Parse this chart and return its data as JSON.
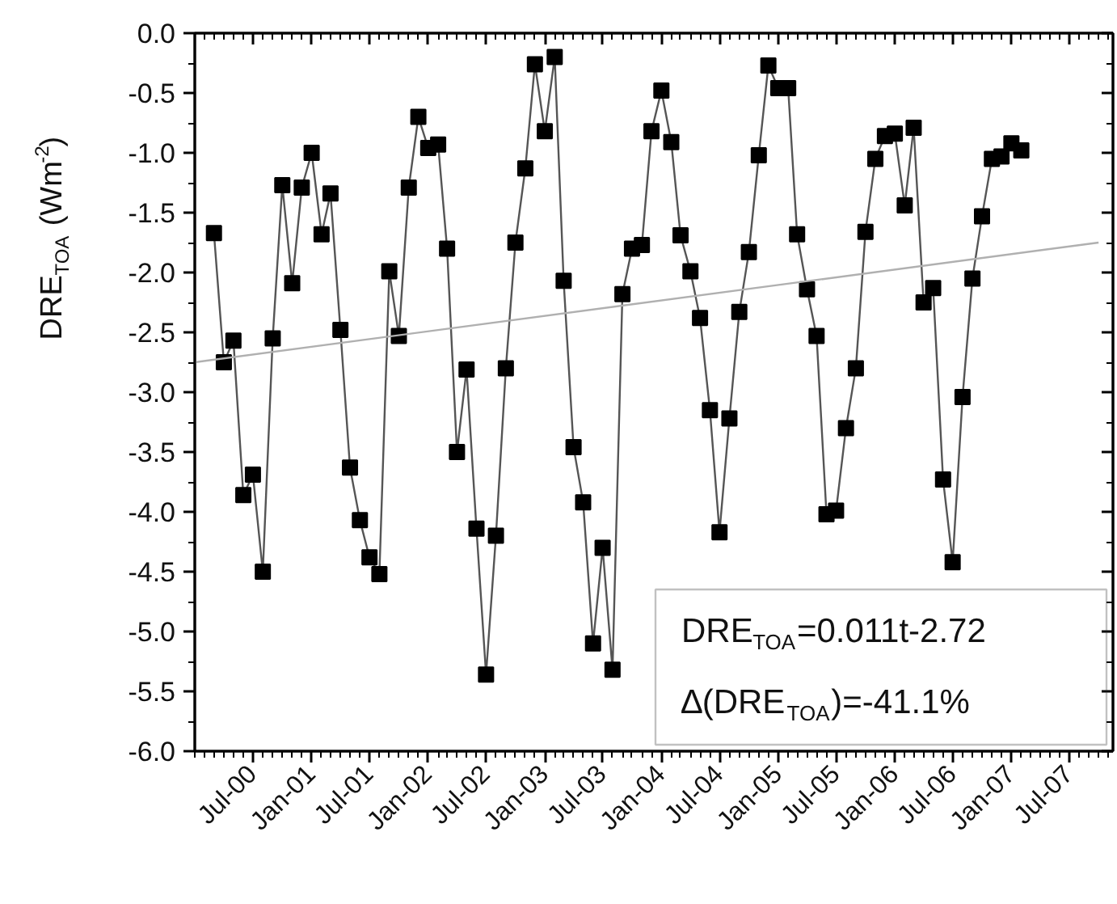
{
  "chart_data": {
    "type": "line",
    "ylabel": "DRE$_{TOA}$ (Wm$^{-2}$)",
    "xlim": [
      "2000-01-01",
      "2007-11-15"
    ],
    "xticks": [
      {
        "value": "2000-07",
        "label": "Jul-00"
      },
      {
        "value": "2001-01",
        "label": "Jan-01"
      },
      {
        "value": "2001-07",
        "label": "Jul-01"
      },
      {
        "value": "2002-01",
        "label": "Jan-02"
      },
      {
        "value": "2002-07",
        "label": "Jul-02"
      },
      {
        "value": "2003-01",
        "label": "Jan-03"
      },
      {
        "value": "2003-07",
        "label": "Jul-03"
      },
      {
        "value": "2004-01",
        "label": "Jan-04"
      },
      {
        "value": "2004-07",
        "label": "Jul-04"
      },
      {
        "value": "2005-01",
        "label": "Jan-05"
      },
      {
        "value": "2005-07",
        "label": "Jul-05"
      },
      {
        "value": "2006-01",
        "label": "Jan-06"
      },
      {
        "value": "2006-07",
        "label": "Jul-06"
      },
      {
        "value": "2007-01",
        "label": "Jan-07"
      },
      {
        "value": "2007-07",
        "label": "Jul-07"
      }
    ],
    "ylim": [
      -6.0,
      0.0
    ],
    "yticks": [
      {
        "value": 0,
        "label": "0.0"
      },
      {
        "value": -0.5,
        "label": "-0.5"
      },
      {
        "value": -1,
        "label": "-1.0"
      },
      {
        "value": -1.5,
        "label": "-1.5"
      },
      {
        "value": -2,
        "label": "-2.0"
      },
      {
        "value": -2.5,
        "label": "-2.5"
      },
      {
        "value": -3,
        "label": "-3.0"
      },
      {
        "value": -3.5,
        "label": "-3.5"
      },
      {
        "value": -4,
        "label": "-4.0"
      },
      {
        "value": -4.5,
        "label": "-4.5"
      },
      {
        "value": -5,
        "label": "-5.0"
      },
      {
        "value": -5.5,
        "label": "-5.5"
      },
      {
        "value": -6,
        "label": "-6.0"
      }
    ],
    "x": [
      "2000-03",
      "2000-04",
      "2000-05",
      "2000-06",
      "2000-07",
      "2000-08",
      "2000-09",
      "2000-10",
      "2000-11",
      "2000-12",
      "2001-01",
      "2001-02",
      "2001-03",
      "2001-04",
      "2001-05",
      "2001-06",
      "2001-07",
      "2001-08",
      "2001-09",
      "2001-10",
      "2001-11",
      "2001-12",
      "2002-01",
      "2002-02",
      "2002-03",
      "2002-04",
      "2002-05",
      "2002-06",
      "2002-07",
      "2002-08",
      "2002-09",
      "2002-10",
      "2002-11",
      "2002-12",
      "2003-01",
      "2003-02",
      "2003-03",
      "2003-04",
      "2003-05",
      "2003-06",
      "2003-07",
      "2003-08",
      "2003-09",
      "2003-10",
      "2003-11",
      "2003-12",
      "2004-01",
      "2004-02",
      "2004-03",
      "2004-04",
      "2004-05",
      "2004-06",
      "2004-07",
      "2004-08",
      "2004-09",
      "2004-10",
      "2004-11",
      "2004-12",
      "2005-01",
      "2005-02",
      "2005-03",
      "2005-04",
      "2005-05",
      "2005-06",
      "2005-07",
      "2005-08",
      "2005-09",
      "2005-10",
      "2005-11",
      "2005-12",
      "2006-01",
      "2006-02",
      "2006-03",
      "2006-04",
      "2006-05",
      "2006-06",
      "2006-07",
      "2006-08",
      "2006-09",
      "2006-10",
      "2006-11",
      "2006-12",
      "2007-01",
      "2007-02"
    ],
    "series": [
      {
        "color": "#000000",
        "marker": "square",
        "values": [
          -1.67,
          -2.75,
          -2.57,
          -3.86,
          -3.69,
          -4.5,
          -2.55,
          -1.27,
          -2.09,
          -1.29,
          -1.0,
          -1.68,
          -1.34,
          -2.48,
          -3.63,
          -4.07,
          -4.38,
          -4.52,
          -1.99,
          -2.53,
          -1.29,
          -0.7,
          -0.96,
          -0.93,
          -1.8,
          -3.5,
          -2.81,
          -4.14,
          -5.36,
          -4.2,
          -2.8,
          -1.75,
          -1.13,
          -0.26,
          -0.82,
          -0.2,
          -2.07,
          -3.46,
          -3.92,
          -5.1,
          -4.3,
          -5.32,
          -2.18,
          -1.8,
          -1.77,
          -0.82,
          -0.48,
          -0.91,
          -1.69,
          -1.99,
          -2.38,
          -3.15,
          -4.17,
          -3.22,
          -2.33,
          -1.83,
          -1.02,
          -0.27,
          -0.46,
          -0.46,
          -1.68,
          -2.14,
          -2.53,
          -4.02,
          -3.99,
          -3.3,
          -2.8,
          -1.66,
          -1.05,
          -0.86,
          -0.84,
          -1.44,
          -0.79,
          -2.25,
          -2.13,
          -3.73,
          -4.42,
          -3.04,
          -2.05,
          -1.53,
          -1.05,
          -1.03,
          -0.92,
          -0.98
        ]
      },
      {
        "type": "line",
        "color": "#b0b0b0",
        "marker": "none",
        "x": [
          "2000-01",
          "2007-10"
        ],
        "values": [
          -2.75,
          -1.75
        ]
      }
    ],
    "annotations": [
      "DRE$_{TOA}$=0.011t-2.72",
      "∆(DRE$_{TOA}$)=-41.1%"
    ],
    "grid": false
  }
}
